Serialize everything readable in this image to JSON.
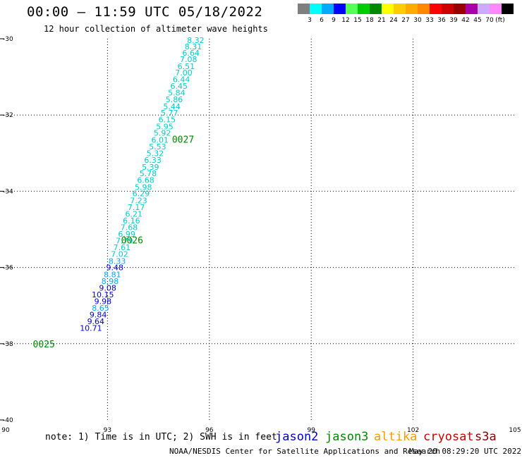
{
  "header": {
    "title": "00:00 – 11:59 UTC 05/18/2022",
    "subtitle": "12 hour collection of altimeter wave heights"
  },
  "colorbar": {
    "colors": [
      "#7f7f7f",
      "#00ffff",
      "#00aaff",
      "#0000ff",
      "#55ff55",
      "#00cc00",
      "#008800",
      "#ffff00",
      "#ffcc00",
      "#ffaa00",
      "#ff8800",
      "#ff0000",
      "#cc0000",
      "#990000",
      "#aa00aa",
      "#ccaaff",
      "#ff88ff",
      "#000000"
    ],
    "labels": [
      "3",
      "6",
      "9",
      "12",
      "15",
      "18",
      "21",
      "24",
      "27",
      "30",
      "33",
      "36",
      "39",
      "42",
      "45",
      "70"
    ],
    "unit": "(ft)"
  },
  "legend": {
    "satellites": [
      {
        "name": "jason2",
        "color": "#0000cc"
      },
      {
        "name": "jason3",
        "color": "#008800"
      },
      {
        "name": "altika",
        "color": "#ff9900"
      },
      {
        "name": "cryosat",
        "color": "#cc0000"
      },
      {
        "name": "s3a",
        "color": "#880000"
      }
    ]
  },
  "footer": {
    "note": "note:  1) Time is in UTC; 2) SWH is in feet",
    "credit": "NOAA/NESDIS Center for Satellite Applications and Research",
    "timestamp": "May 20 08:29:20 UTC 2022"
  },
  "chart_data": {
    "type": "scatter",
    "x_ticks": [
      "90",
      "93",
      "96",
      "99",
      "102",
      "105"
    ],
    "y_ticks": [
      "-30",
      "-32",
      "-34",
      "-36",
      "-38",
      "-40"
    ],
    "xlim": [
      90,
      105
    ],
    "ylim": [
      -40,
      -30
    ],
    "grid": true,
    "points": [
      {
        "lon": 95.85,
        "lat": -30.04,
        "label": "8.32",
        "color": "#00cccc"
      },
      {
        "lon": 95.78,
        "lat": -30.2,
        "label": "8.31",
        "color": "#00cccc"
      },
      {
        "lon": 95.71,
        "lat": -30.37,
        "label": "6.64",
        "color": "#00cccc"
      },
      {
        "lon": 95.64,
        "lat": -30.54,
        "label": "7.08",
        "color": "#00cccc"
      },
      {
        "lon": 95.57,
        "lat": -30.72,
        "label": "6.51",
        "color": "#00cccc"
      },
      {
        "lon": 95.5,
        "lat": -30.89,
        "label": "7.00",
        "color": "#00cccc"
      },
      {
        "lon": 95.43,
        "lat": -31.06,
        "label": "6.44",
        "color": "#00cccc"
      },
      {
        "lon": 95.36,
        "lat": -31.24,
        "label": "6.45",
        "color": "#00cccc"
      },
      {
        "lon": 95.29,
        "lat": -31.41,
        "label": "5.84",
        "color": "#00cccc"
      },
      {
        "lon": 95.22,
        "lat": -31.59,
        "label": "5.86",
        "color": "#00cccc"
      },
      {
        "lon": 95.15,
        "lat": -31.77,
        "label": "5.44",
        "color": "#00cccc"
      },
      {
        "lon": 95.08,
        "lat": -31.94,
        "label": "5.77",
        "color": "#00cccc"
      },
      {
        "lon": 95.01,
        "lat": -32.12,
        "label": "6.15",
        "color": "#00cccc"
      },
      {
        "lon": 94.94,
        "lat": -32.3,
        "label": "5.95",
        "color": "#00cccc"
      },
      {
        "lon": 94.87,
        "lat": -32.47,
        "label": "5.92",
        "color": "#00cccc"
      },
      {
        "lon": 94.8,
        "lat": -32.65,
        "label": "6.01",
        "color": "#00cccc"
      },
      {
        "lon": 94.73,
        "lat": -32.83,
        "label": "5.53",
        "color": "#00cccc"
      },
      {
        "lon": 94.66,
        "lat": -33.0,
        "label": "5.32",
        "color": "#00cccc"
      },
      {
        "lon": 94.59,
        "lat": -33.18,
        "label": "6.33",
        "color": "#00cccc"
      },
      {
        "lon": 94.52,
        "lat": -33.36,
        "label": "5.39",
        "color": "#00cccc"
      },
      {
        "lon": 94.45,
        "lat": -33.53,
        "label": "5.78",
        "color": "#00cccc"
      },
      {
        "lon": 94.38,
        "lat": -33.71,
        "label": "6.68",
        "color": "#00cccc"
      },
      {
        "lon": 94.31,
        "lat": -33.89,
        "label": "5.98",
        "color": "#00cccc"
      },
      {
        "lon": 94.24,
        "lat": -34.06,
        "label": "6.29",
        "color": "#00cccc"
      },
      {
        "lon": 94.17,
        "lat": -34.24,
        "label": "7.23",
        "color": "#00cccc"
      },
      {
        "lon": 94.1,
        "lat": -34.42,
        "label": "7.17",
        "color": "#00cccc"
      },
      {
        "lon": 94.03,
        "lat": -34.59,
        "label": "6.21",
        "color": "#00cccc"
      },
      {
        "lon": 93.96,
        "lat": -34.77,
        "label": "6.16",
        "color": "#00cccc"
      },
      {
        "lon": 93.89,
        "lat": -34.94,
        "label": "7.68",
        "color": "#00cccc"
      },
      {
        "lon": 93.82,
        "lat": -35.12,
        "label": "6.99",
        "color": "#00cccc"
      },
      {
        "lon": 93.75,
        "lat": -35.3,
        "label": "7.79",
        "color": "#00cccc"
      },
      {
        "lon": 93.68,
        "lat": -35.47,
        "label": "7.61",
        "color": "#00cccc"
      },
      {
        "lon": 93.61,
        "lat": -35.65,
        "label": "7.02",
        "color": "#00cccc"
      },
      {
        "lon": 93.54,
        "lat": -35.83,
        "label": "8.33",
        "color": "#00aaff"
      },
      {
        "lon": 93.47,
        "lat": -36.0,
        "label": "9.48",
        "color": "#0000cc"
      },
      {
        "lon": 93.4,
        "lat": -36.18,
        "label": "8.81",
        "color": "#00aaff"
      },
      {
        "lon": 93.33,
        "lat": -36.36,
        "label": "8.98",
        "color": "#00aaff"
      },
      {
        "lon": 93.26,
        "lat": -36.53,
        "label": "9.08",
        "color": "#0000cc"
      },
      {
        "lon": 93.19,
        "lat": -36.71,
        "label": "10.15",
        "color": "#0000cc"
      },
      {
        "lon": 93.12,
        "lat": -36.89,
        "label": "9.98",
        "color": "#0000cc"
      },
      {
        "lon": 93.05,
        "lat": -37.06,
        "label": "8.65",
        "color": "#00aaff"
      },
      {
        "lon": 92.98,
        "lat": -37.24,
        "label": "9.84",
        "color": "#0000cc"
      },
      {
        "lon": 92.91,
        "lat": -37.41,
        "label": "9.64",
        "color": "#0000cc"
      },
      {
        "lon": 92.84,
        "lat": -37.59,
        "label": "10.71",
        "color": "#0000cc"
      }
    ],
    "time_labels": [
      {
        "lon": 94.9,
        "lat": -32.63,
        "label": "0027"
      },
      {
        "lon": 93.4,
        "lat": -35.28,
        "label": "0026"
      },
      {
        "lon": 90.8,
        "lat": -38.0,
        "label": "0025"
      }
    ]
  }
}
